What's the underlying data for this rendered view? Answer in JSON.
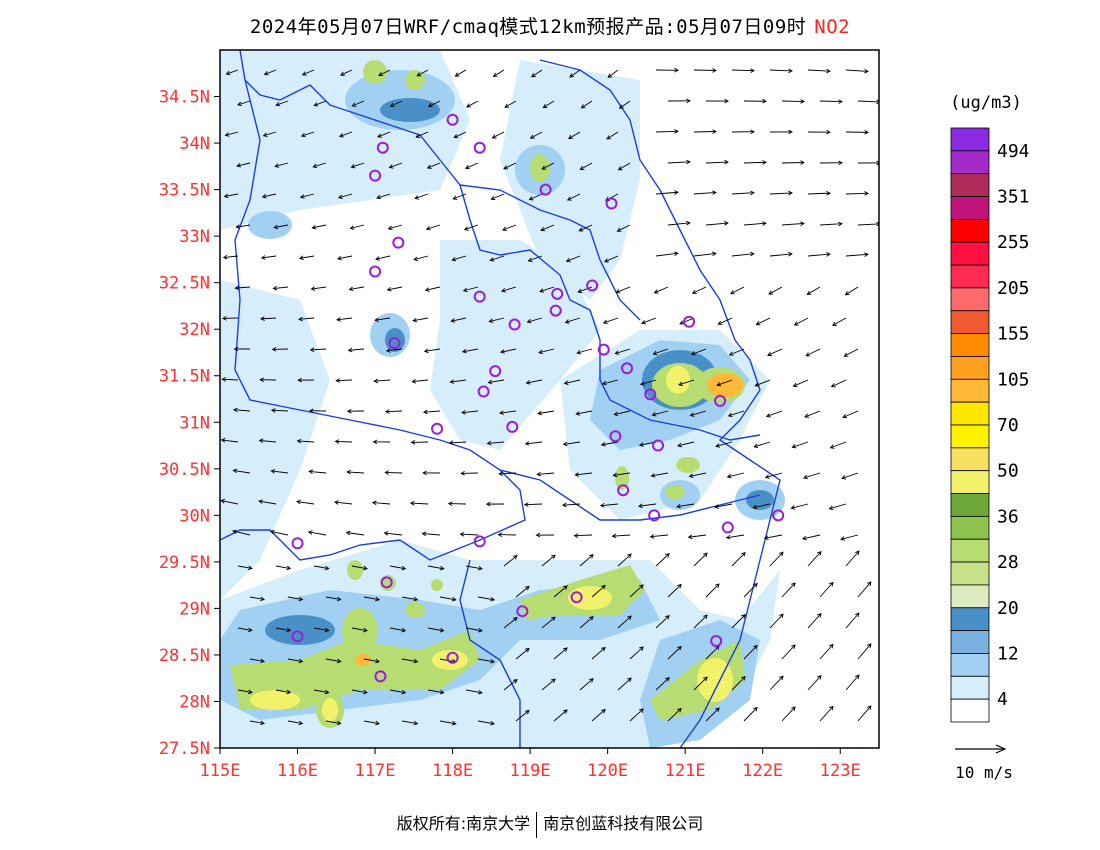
{
  "title": {
    "text": "2024年05月07日WRF/cmaq模式12km预报产品:05月07日09时",
    "pollutant": "NO2"
  },
  "axes": {
    "lat_labels": [
      "34.5N",
      "34N",
      "33.5N",
      "33N",
      "32.5N",
      "32N",
      "31.5N",
      "31N",
      "30.5N",
      "30N",
      "29.5N",
      "29N",
      "28.5N",
      "28N",
      "27.5N"
    ],
    "lon_labels": [
      "115E",
      "116E",
      "117E",
      "118E",
      "119E",
      "120E",
      "121E",
      "122E",
      "123E"
    ],
    "lon_range": [
      115,
      123.5
    ],
    "lat_range": [
      27.5,
      35
    ],
    "label_color": "#ff3030"
  },
  "legend": {
    "unit": "(ug/m3)",
    "labels": [
      "494",
      "351",
      "255",
      "205",
      "155",
      "105",
      "70",
      "50",
      "36",
      "28",
      "20",
      "12",
      "4"
    ],
    "colors": [
      "#8a2be2",
      "#a42ac8",
      "#b02a5a",
      "#c0147c",
      "#ff0000",
      "#ff1040",
      "#ff2a50",
      "#ff6a6a",
      "#f05a30",
      "#ff8c00",
      "#ffa020",
      "#ffb838",
      "#ffe600",
      "#fff200",
      "#f5e060",
      "#f2f26a",
      "#6ca83a",
      "#8cc44e",
      "#b6dc72",
      "#c8e08a",
      "#dcebc0",
      "#4a90c8",
      "#78b0e0",
      "#a2d0f2",
      "#d6eefc",
      "#ffffff"
    ],
    "wind_label": "10 m/s"
  },
  "cities": [
    [
      118.0,
      34.25
    ],
    [
      117.1,
      33.95
    ],
    [
      117.0,
      33.65
    ],
    [
      118.35,
      33.95
    ],
    [
      119.2,
      33.5
    ],
    [
      120.05,
      33.35
    ],
    [
      117.3,
      32.93
    ],
    [
      117.0,
      32.62
    ],
    [
      118.35,
      32.35
    ],
    [
      119.35,
      32.38
    ],
    [
      119.33,
      32.2
    ],
    [
      119.8,
      32.47
    ],
    [
      118.8,
      32.05
    ],
    [
      121.05,
      32.08
    ],
    [
      117.25,
      31.85
    ],
    [
      119.95,
      31.78
    ],
    [
      120.25,
      31.58
    ],
    [
      118.55,
      31.55
    ],
    [
      118.4,
      31.33
    ],
    [
      120.55,
      31.3
    ],
    [
      121.45,
      31.23
    ],
    [
      117.8,
      30.93
    ],
    [
      118.77,
      30.95
    ],
    [
      120.1,
      30.85
    ],
    [
      120.65,
      30.75
    ],
    [
      120.2,
      30.27
    ],
    [
      120.6,
      30.0
    ],
    [
      121.55,
      29.87
    ],
    [
      122.2,
      30.0
    ],
    [
      116.0,
      29.7
    ],
    [
      118.35,
      29.72
    ],
    [
      117.15,
      29.28
    ],
    [
      118.9,
      28.97
    ],
    [
      119.6,
      29.12
    ],
    [
      116.0,
      28.7
    ],
    [
      118.0,
      28.47
    ],
    [
      117.07,
      28.27
    ],
    [
      121.4,
      28.65
    ]
  ]
}
